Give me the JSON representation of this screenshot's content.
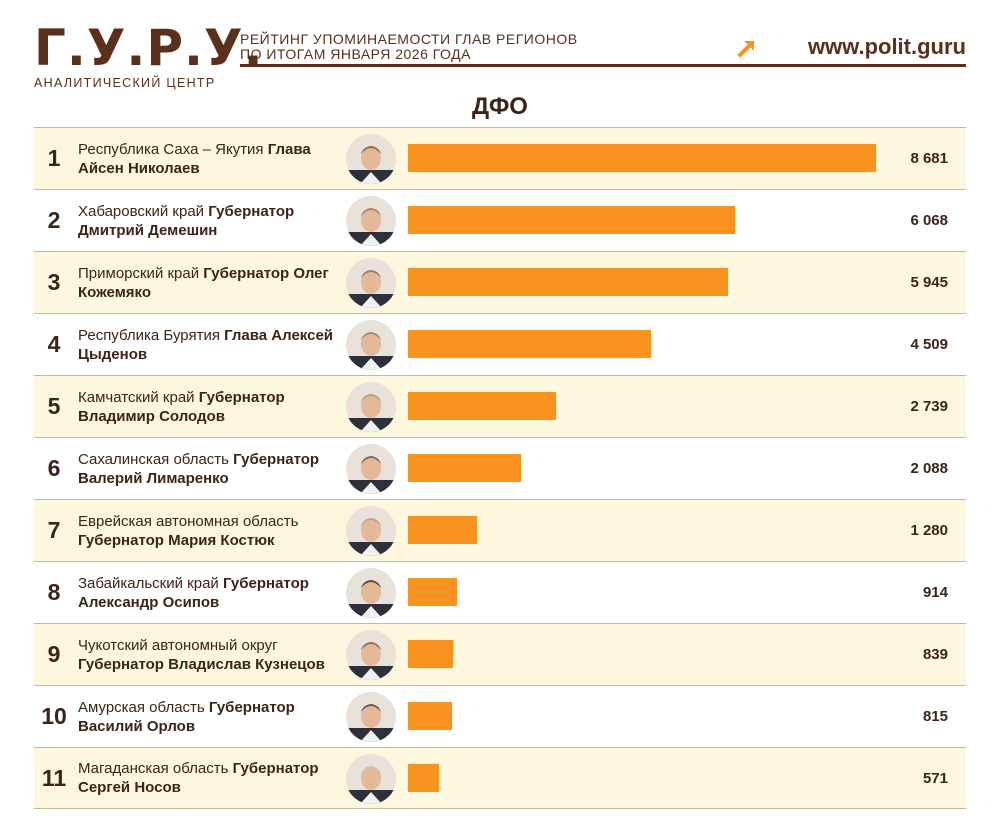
{
  "header": {
    "logo": "Г.У.Р.У.",
    "logo_sub": "АНАЛИТИЧЕСКИЙ ЦЕНТР",
    "headline_line1": "РЕЙТИНГ УПОМИНАЕМОСТИ ГЛАВ РЕГИОНОВ",
    "headline_line2": "ПО ИТОГАМ ЯНВАРЯ 2026 ГОДА",
    "site": "www.polit.guru"
  },
  "colors": {
    "bar": "#f7931e",
    "text": "#3d2418",
    "alt_row": "#fdf7de",
    "brand": "#5a2f1c"
  },
  "chart_data": {
    "type": "bar",
    "title": "ДФО",
    "xlim": [
      0,
      8681
    ],
    "rows": [
      {
        "rank": "1",
        "region": "Республика Саха – Якутия",
        "position": "Глава Айсен Николаев",
        "value": 8681,
        "value_label": "8 681"
      },
      {
        "rank": "2",
        "region": "Хабаровский край",
        "position": "Губернатор Дмитрий Демешин",
        "value": 6068,
        "value_label": "6 068"
      },
      {
        "rank": "3",
        "region": "Приморский край",
        "position": "Губернатор Олег Кожемяко",
        "value": 5945,
        "value_label": "5 945"
      },
      {
        "rank": "4",
        "region": "Республика Бурятия",
        "position": "Глава Алексей Цыденов",
        "value": 4509,
        "value_label": "4 509"
      },
      {
        "rank": "5",
        "region": "Камчатский край",
        "position": "Губернатор Владимир Солодов",
        "value": 2739,
        "value_label": "2 739"
      },
      {
        "rank": "6",
        "region": "Сахалинская область",
        "position": "Губернатор Валерий Лимаренко",
        "value": 2088,
        "value_label": "2 088"
      },
      {
        "rank": "7",
        "region": "Еврейская автономная область",
        "position": "Губернатор Мария Костюк",
        "value": 1280,
        "value_label": "1 280"
      },
      {
        "rank": "8",
        "region": "Забайкальский край",
        "position": "Губернатор Александр Осипов",
        "value": 914,
        "value_label": "914"
      },
      {
        "rank": "9",
        "region": "Чукотский автономный округ",
        "position": "Губернатор Владислав Кузнецов",
        "value": 839,
        "value_label": "839"
      },
      {
        "rank": "10",
        "region": "Амурская область",
        "position": "Губернатор Василий Орлов",
        "value": 815,
        "value_label": "815"
      },
      {
        "rank": "11",
        "region": "Магаданская область",
        "position": "Губернатор Сергей Носов",
        "value": 571,
        "value_label": "571"
      }
    ]
  }
}
